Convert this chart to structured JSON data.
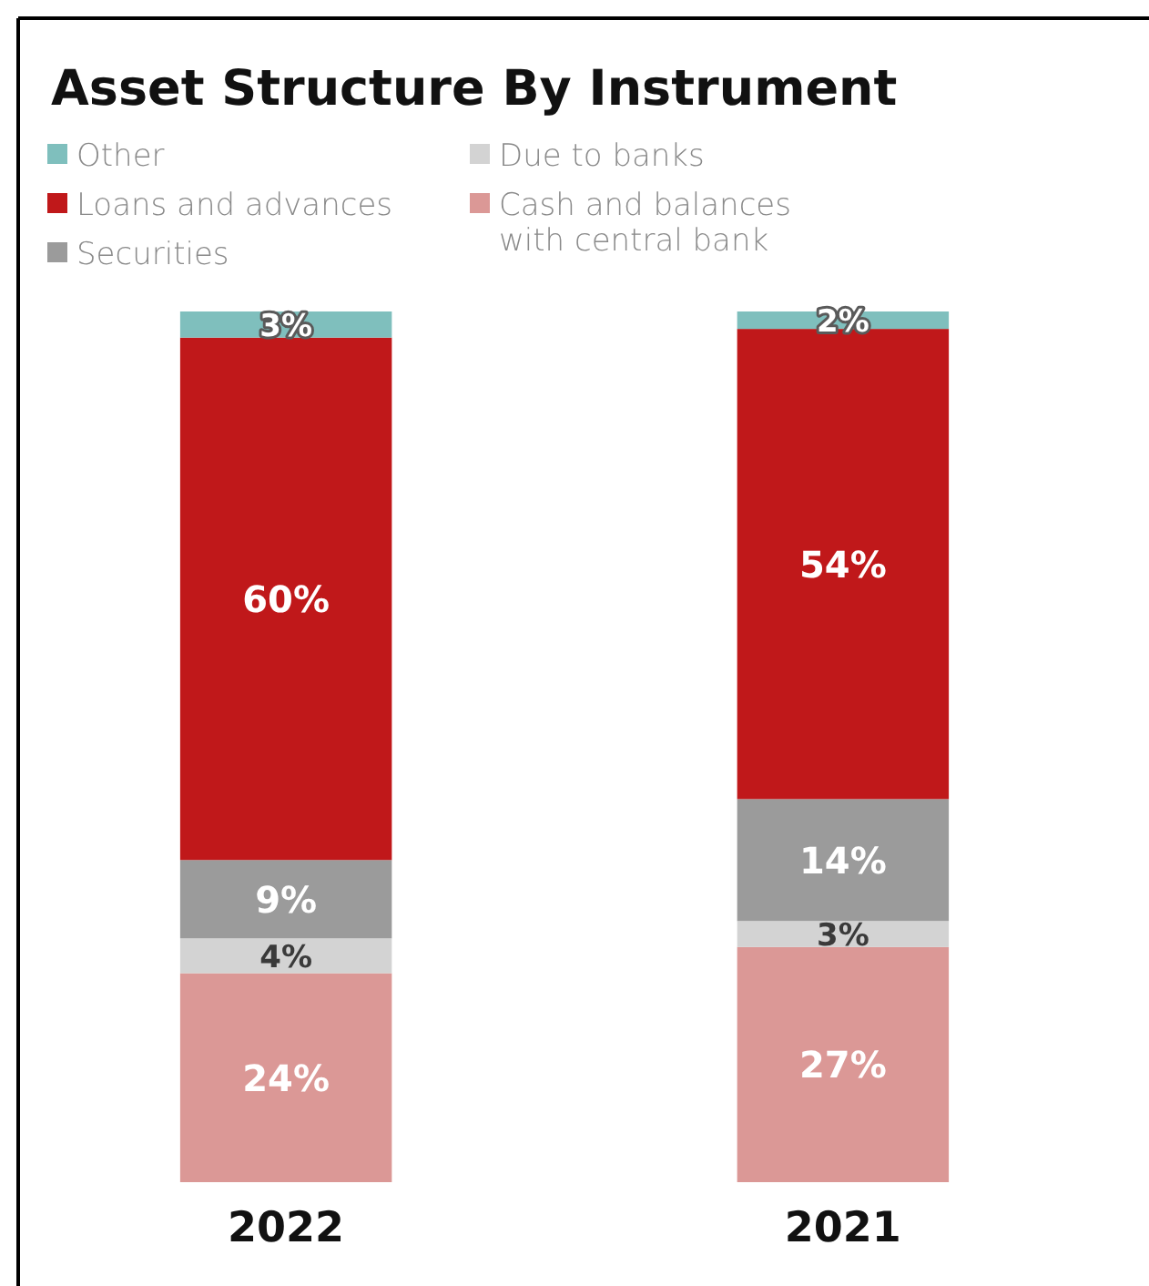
{
  "chart_data": {
    "type": "bar",
    "title": "Asset Structure By Instrument",
    "categories": [
      "2022",
      "2021"
    ],
    "stacked": true,
    "legend": "top left",
    "series": [
      {
        "name": "Cash and balances\nwith central bank",
        "color": "#db9896",
        "values": [
          24,
          27
        ],
        "value_labels": [
          "24%",
          "27%"
        ]
      },
      {
        "name": "Due to banks",
        "color": "#d3d3d3",
        "values": [
          4,
          3
        ],
        "value_labels": [
          "4%",
          "3%"
        ]
      },
      {
        "name": "Securities",
        "color": "#9b9b9b",
        "values": [
          9,
          14
        ],
        "value_labels": [
          "9%",
          "14%"
        ]
      },
      {
        "name": "Loans and advances",
        "color": "#c0181a",
        "values": [
          60,
          54
        ],
        "value_labels": [
          "60%",
          "54%"
        ]
      },
      {
        "name": "Other",
        "color": "#7fbfbd",
        "values": [
          3,
          2
        ],
        "value_labels": [
          "3%",
          "2%"
        ]
      }
    ]
  }
}
